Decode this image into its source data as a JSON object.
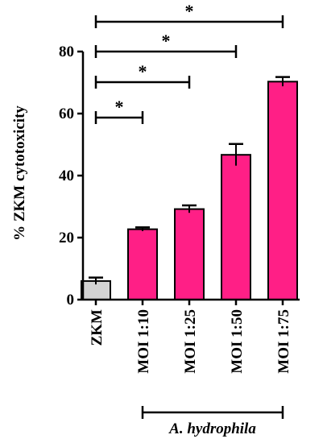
{
  "chart_data": {
    "type": "bar",
    "title": "",
    "xlabel": "",
    "ylabel": "% ZKM cytotoxicity",
    "ylim": [
      0,
      80
    ],
    "yticks": [
      0,
      20,
      40,
      60,
      80
    ],
    "categories": [
      "ZKM",
      "MOI 1:10",
      "MOI 1:25",
      "MOI 1:50",
      "MOI 1:75"
    ],
    "values": [
      6,
      22.7,
      29.2,
      46.7,
      70.3
    ],
    "errors": [
      1.1,
      0.6,
      1.2,
      3.5,
      1.5
    ],
    "bar_colors": [
      "#d3d3d3",
      "#ff1f86",
      "#ff1f86",
      "#ff1f86",
      "#ff1f86"
    ],
    "significance": [
      {
        "from": "ZKM",
        "to": "MOI 1:10",
        "label": "*"
      },
      {
        "from": "ZKM",
        "to": "MOI 1:25",
        "label": "*"
      },
      {
        "from": "ZKM",
        "to": "MOI 1:50",
        "label": "*"
      },
      {
        "from": "ZKM",
        "to": "MOI 1:75",
        "label": "*"
      }
    ],
    "group_bracket": {
      "from": "MOI 1:10",
      "to": "MOI 1:75",
      "label": "A. hydrophila"
    }
  }
}
